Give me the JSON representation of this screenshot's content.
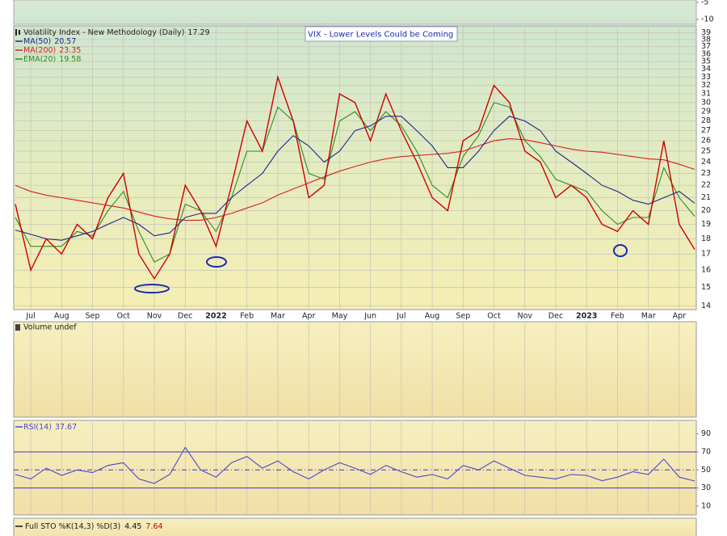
{
  "chart_data": [
    {
      "type": "line",
      "ylim": [
        -11.4,
        -4.3
      ],
      "yticks": [
        -5,
        -10
      ]
    },
    {
      "type": "line",
      "log_scale": true,
      "grid": true,
      "ylim": [
        13.8,
        40
      ],
      "yticks": [
        14,
        15,
        16,
        17,
        18,
        19,
        20,
        21,
        22,
        23,
        24,
        25,
        26,
        27,
        28,
        29,
        30,
        31,
        32,
        33,
        34,
        35,
        36,
        37,
        38,
        39
      ],
      "annotation": "VIX - Lower Levels Could be Coming",
      "categories": [
        null,
        "Jul",
        null,
        "Aug",
        null,
        "Sep",
        null,
        "Oct",
        null,
        "Nov",
        null,
        "Dec",
        null,
        "2022",
        null,
        "Feb",
        null,
        "Mar",
        null,
        "Apr",
        null,
        "May",
        null,
        "Jun",
        null,
        "Jul",
        null,
        "Aug",
        null,
        "Sep",
        null,
        "Oct",
        null,
        "Nov",
        null,
        "Dec",
        null,
        "2023",
        null,
        "Feb",
        null,
        "Mar",
        null,
        "Apr",
        null
      ],
      "series": [
        {
          "name": "Volatility Index - New Methodology (Daily)",
          "color": "#cc0000",
          "values": [
            20.5,
            16,
            18,
            17,
            19,
            18,
            21,
            23,
            17,
            15.5,
            17,
            22,
            20,
            17.5,
            22,
            28,
            25,
            33,
            28,
            21,
            22,
            31,
            30,
            26,
            31,
            27,
            24,
            21,
            20,
            26,
            27,
            32,
            30,
            25,
            24,
            21,
            22,
            21,
            19,
            18.5,
            20,
            19,
            26,
            19,
            17.29
          ]
        },
        {
          "name": "MA(50)",
          "color": "#1a2a8c",
          "values": [
            18.6,
            18.3,
            18,
            17.9,
            18.2,
            18.5,
            19,
            19.5,
            19,
            18.2,
            18.4,
            19.5,
            19.8,
            19.8,
            21,
            22,
            23,
            25,
            26.5,
            25.5,
            24,
            25,
            27,
            27.5,
            28.5,
            28.5,
            27,
            25.5,
            23.5,
            23.5,
            25,
            27,
            28.5,
            28,
            27,
            25,
            24,
            23,
            22,
            21.5,
            20.8,
            20.5,
            21,
            21.5,
            20.57
          ]
        },
        {
          "name": "MA(200)",
          "color": "#d42020",
          "values": [
            22,
            21.5,
            21.2,
            21,
            20.8,
            20.6,
            20.4,
            20.2,
            19.9,
            19.6,
            19.4,
            19.3,
            19.3,
            19.5,
            19.8,
            20.2,
            20.6,
            21.2,
            21.7,
            22.2,
            22.7,
            23.2,
            23.6,
            24,
            24.3,
            24.5,
            24.6,
            24.7,
            24.8,
            25,
            25.5,
            26,
            26.2,
            26.1,
            25.8,
            25.5,
            25.2,
            25,
            24.9,
            24.7,
            24.5,
            24.3,
            24.2,
            23.8,
            23.35
          ]
        },
        {
          "name": "EMA(20)",
          "color": "#2e8b22",
          "values": [
            19.5,
            17.5,
            17.5,
            17.5,
            18.5,
            18.2,
            20,
            21.5,
            18.5,
            16.5,
            17,
            20.5,
            20,
            18.5,
            21,
            25,
            25,
            29.5,
            28,
            23,
            22.5,
            28,
            29,
            27,
            29,
            27.5,
            25,
            22,
            21,
            24.5,
            26.5,
            30,
            29.5,
            26,
            24.5,
            22.5,
            22,
            21.5,
            20,
            19,
            19.5,
            19.5,
            23.5,
            21,
            19.58
          ]
        }
      ]
    },
    {
      "type": "volume",
      "title": "Volume undef"
    },
    {
      "type": "line",
      "ylim": [
        0,
        105
      ],
      "yticks": [
        90,
        70,
        50,
        30,
        10
      ],
      "bands": [
        30,
        70
      ],
      "midline": 50,
      "series": [
        {
          "name": "RSI(14)",
          "color": "#4a4ac8",
          "values": [
            45,
            40,
            52,
            44,
            50,
            47,
            55,
            58,
            40,
            35,
            45,
            75,
            50,
            42,
            58,
            65,
            52,
            60,
            48,
            40,
            50,
            58,
            52,
            45,
            55,
            48,
            42,
            45,
            40,
            55,
            50,
            60,
            52,
            44,
            42,
            40,
            45,
            44,
            38,
            42,
            48,
            45,
            62,
            42,
            37.67
          ]
        }
      ]
    },
    {
      "type": "sto",
      "title": "Full STO %K(14,3) %D(3)",
      "series": [
        {
          "color": "#111111",
          "values": [
            4.45
          ]
        },
        {
          "color": "#cc0000",
          "values": [
            7.64
          ]
        }
      ]
    }
  ]
}
